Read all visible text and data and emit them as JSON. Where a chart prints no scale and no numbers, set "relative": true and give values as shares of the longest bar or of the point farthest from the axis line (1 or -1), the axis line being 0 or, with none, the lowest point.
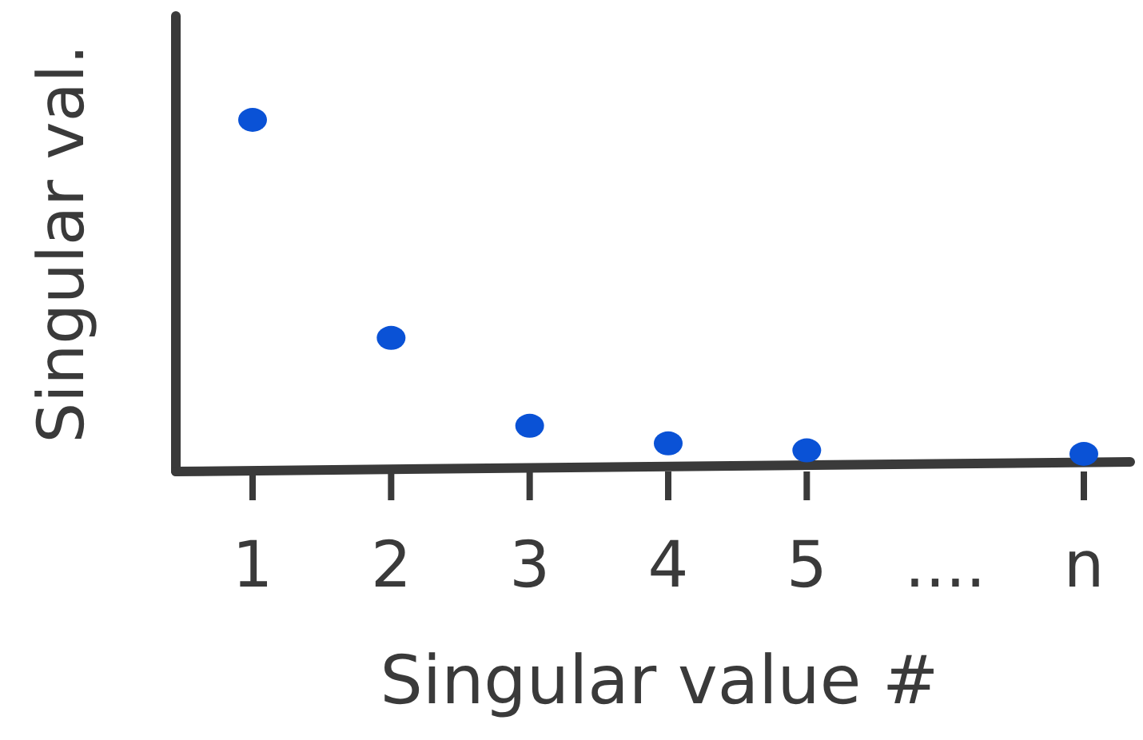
{
  "chart_data": {
    "type": "scatter",
    "xlabel": "Singular value #",
    "ylabel": "Singular val.",
    "categories": [
      "1",
      "2",
      "3",
      "4",
      "5",
      "....",
      "n"
    ],
    "relative": true,
    "marker": "circle",
    "series": [
      {
        "color": "#0a52d6",
        "values": [
          1,
          0.38,
          0.13,
          0.08,
          0.06,
          null,
          0.05
        ]
      }
    ]
  }
}
